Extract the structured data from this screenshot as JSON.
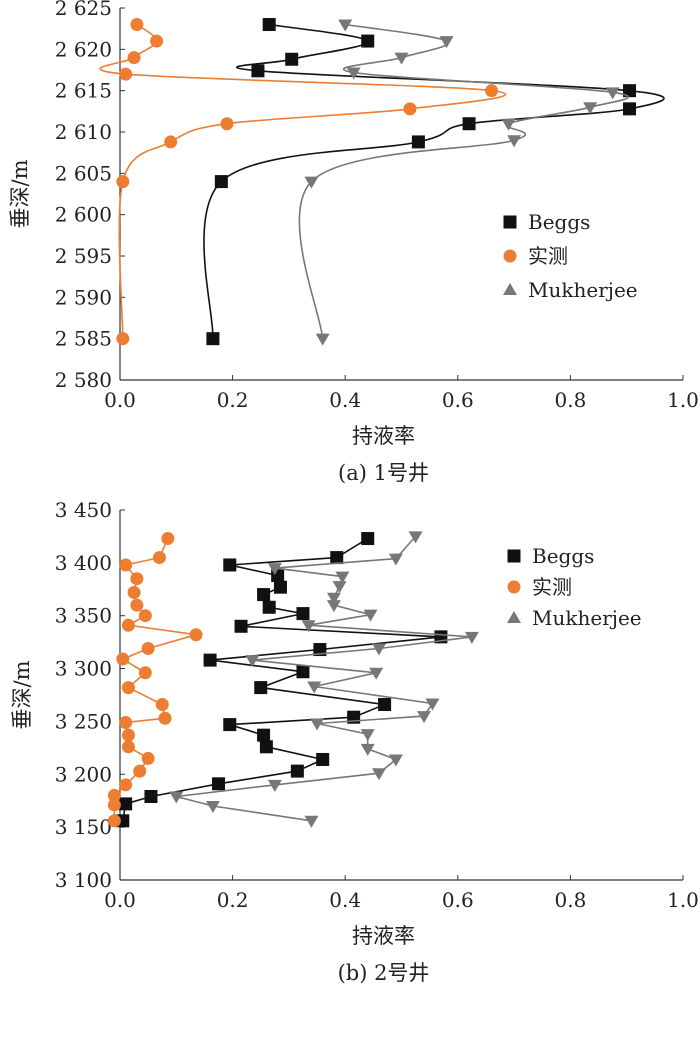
{
  "chart_data": [
    {
      "type": "line",
      "caption": "(a) 1号井",
      "xlabel": "持液率",
      "ylabel": "垂深/m",
      "xlim": [
        0,
        1.0
      ],
      "ylim": [
        2580,
        2625
      ],
      "xticks": [
        "0.0",
        "0.2",
        "0.4",
        "0.6",
        "0.8",
        "1.0"
      ],
      "yticks": [
        "2 580",
        "2 585",
        "2 590",
        "2 595",
        "2 600",
        "2 605",
        "2 610",
        "2 615",
        "2 620",
        "2 625"
      ],
      "legend_position": "right",
      "series": [
        {
          "name": "Beggs",
          "marker": "square",
          "color": "#111111",
          "points": [
            [
              0.265,
              2623
            ],
            [
              0.44,
              2621
            ],
            [
              0.305,
              2618.8
            ],
            [
              0.245,
              2617.4
            ],
            [
              0.905,
              2615
            ],
            [
              0.905,
              2612.8
            ],
            [
              0.62,
              2611
            ],
            [
              0.53,
              2608.8
            ],
            [
              0.18,
              2604
            ],
            [
              0.165,
              2585
            ]
          ]
        },
        {
          "name": "实测",
          "marker": "circle",
          "color": "#ED7D31",
          "points": [
            [
              0.03,
              2623
            ],
            [
              0.065,
              2621
            ],
            [
              0.025,
              2619
            ],
            [
              0.01,
              2617
            ],
            [
              0.66,
              2615
            ],
            [
              0.515,
              2612.8
            ],
            [
              0.19,
              2611
            ],
            [
              0.09,
              2608.8
            ],
            [
              0.005,
              2604
            ],
            [
              0.005,
              2585
            ]
          ]
        },
        {
          "name": "Mukherjee",
          "marker": "triangle",
          "color": "#777777",
          "points": [
            [
              0.4,
              2623
            ],
            [
              0.58,
              2621
            ],
            [
              0.5,
              2619
            ],
            [
              0.415,
              2617.2
            ],
            [
              0.875,
              2614.8
            ],
            [
              0.835,
              2613
            ],
            [
              0.69,
              2611
            ],
            [
              0.7,
              2609
            ],
            [
              0.34,
              2604
            ],
            [
              0.36,
              2585
            ]
          ]
        }
      ]
    },
    {
      "type": "line",
      "caption": "(b) 2号井",
      "xlabel": "持液率",
      "ylabel": "垂深/m",
      "xlim": [
        0,
        1.0
      ],
      "ylim": [
        3100,
        3450
      ],
      "xticks": [
        "0.0",
        "0.2",
        "0.4",
        "0.6",
        "0.8",
        "1.0"
      ],
      "yticks": [
        "3 100",
        "3 150",
        "3 200",
        "3 250",
        "3 300",
        "3 350",
        "3 400",
        "3 450"
      ],
      "legend_position": "right",
      "series": [
        {
          "name": "Beggs",
          "marker": "square",
          "color": "#111111",
          "points": [
            [
              0.44,
              3423
            ],
            [
              0.385,
              3405
            ],
            [
              0.195,
              3398
            ],
            [
              0.28,
              3388
            ],
            [
              0.285,
              3377
            ],
            [
              0.255,
              3370
            ],
            [
              0.265,
              3358
            ],
            [
              0.325,
              3352
            ],
            [
              0.215,
              3340
            ],
            [
              0.57,
              3330
            ],
            [
              0.355,
              3318
            ],
            [
              0.16,
              3308
            ],
            [
              0.325,
              3297
            ],
            [
              0.25,
              3282
            ],
            [
              0.47,
              3266
            ],
            [
              0.415,
              3254
            ],
            [
              0.195,
              3247
            ],
            [
              0.255,
              3237
            ],
            [
              0.26,
              3226
            ],
            [
              0.36,
              3214
            ],
            [
              0.315,
              3203
            ],
            [
              0.175,
              3191
            ],
            [
              0.055,
              3179
            ],
            [
              0.01,
              3172
            ],
            [
              0.005,
              3156
            ]
          ]
        },
        {
          "name": "实测",
          "marker": "circle",
          "color": "#ED7D31",
          "points": [
            [
              0.085,
              3423
            ],
            [
              0.07,
              3405
            ],
            [
              0.01,
              3398
            ],
            [
              0.03,
              3385
            ],
            [
              0.025,
              3372
            ],
            [
              0.03,
              3360
            ],
            [
              0.045,
              3350
            ],
            [
              0.015,
              3341
            ],
            [
              0.135,
              3332
            ],
            [
              0.05,
              3319
            ],
            [
              0.005,
              3309
            ],
            [
              0.045,
              3296
            ],
            [
              0.015,
              3282
            ],
            [
              0.075,
              3266
            ],
            [
              0.08,
              3253
            ],
            [
              0.01,
              3249
            ],
            [
              0.015,
              3237
            ],
            [
              0.015,
              3226
            ],
            [
              0.05,
              3215
            ],
            [
              0.035,
              3203
            ],
            [
              0.01,
              3190
            ],
            [
              -0.01,
              3180
            ],
            [
              -0.01,
              3171
            ],
            [
              -0.01,
              3156
            ]
          ]
        },
        {
          "name": "Mukherjee",
          "marker": "triangle",
          "color": "#777777",
          "points": [
            [
              0.525,
              3425
            ],
            [
              0.49,
              3404
            ],
            [
              0.275,
              3395
            ],
            [
              0.395,
              3387
            ],
            [
              0.39,
              3378
            ],
            [
              0.38,
              3367
            ],
            [
              0.38,
              3360
            ],
            [
              0.445,
              3351
            ],
            [
              0.335,
              3341
            ],
            [
              0.625,
              3330
            ],
            [
              0.46,
              3319
            ],
            [
              0.235,
              3308
            ],
            [
              0.455,
              3296
            ],
            [
              0.345,
              3283
            ],
            [
              0.555,
              3267
            ],
            [
              0.54,
              3255
            ],
            [
              0.35,
              3248
            ],
            [
              0.44,
              3238
            ],
            [
              0.44,
              3224
            ],
            [
              0.49,
              3214
            ],
            [
              0.46,
              3201
            ],
            [
              0.275,
              3190
            ],
            [
              0.1,
              3179
            ],
            [
              0.165,
              3170
            ],
            [
              0.34,
              3156
            ]
          ]
        }
      ]
    }
  ]
}
